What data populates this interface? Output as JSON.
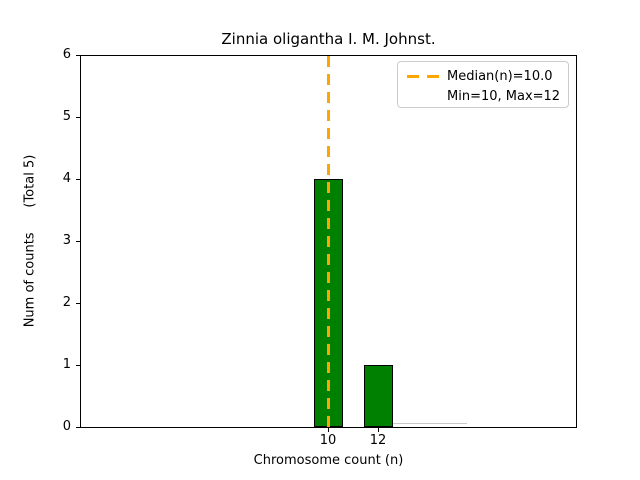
{
  "title": "Zinnia oligantha I. M. Johnst.",
  "axes": {
    "xlabel": "Chromosome count (n)",
    "ylabel": "Num of counts      (Total 5)",
    "x_tick_labels": [
      "10",
      "12"
    ],
    "y_tick_labels": [
      "6",
      "5",
      "4",
      "3",
      "2",
      "1",
      "0"
    ]
  },
  "legend": {
    "median_label": "Median(n)=10.0",
    "minmax_label": "Min=10, Max=12"
  },
  "colors": {
    "bar_fill": "#008000",
    "bar_edge": "#000000",
    "median_line": "#FFA500",
    "legend_border": "#cccccc",
    "background": "#ffffff"
  },
  "chart_data": {
    "type": "bar",
    "title": "Zinnia oligantha I. M. Johnst.",
    "xlabel": "Chromosome count (n)",
    "ylabel": "Num of counts (Total 5)",
    "categories": [
      10,
      12
    ],
    "values": [
      4,
      1
    ],
    "total_counts": 5,
    "median_n": 10.0,
    "min_n": 10,
    "max_n": 12,
    "ylim": [
      0,
      6
    ],
    "yticks": [
      0,
      1,
      2,
      3,
      4,
      5,
      6
    ],
    "legend_entries": [
      "Median(n)=10.0",
      "Min=10, Max=12"
    ],
    "legend_position": "upper right",
    "grid": false
  }
}
